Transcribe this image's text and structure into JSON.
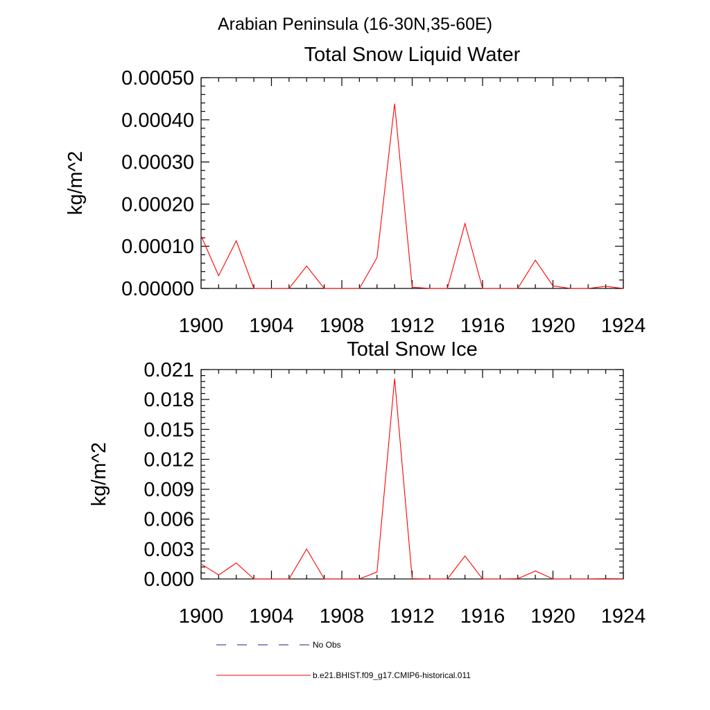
{
  "figure_title": "Arabian Peninsula (16-30N,35-60E)",
  "legend": [
    {
      "label": "No Obs",
      "color": "#1c1c8c",
      "style": "dashed"
    },
    {
      "label": "b.e21.BHIST.f09_g17.CMIP6-historical.011",
      "color": "#ff0000",
      "style": "solid"
    }
  ],
  "chart_data": [
    {
      "type": "line",
      "title": "Total Snow Liquid Water",
      "ylabel": "kg/m^2",
      "xlabel": "",
      "xlim": [
        1900,
        1924
      ],
      "ylim": [
        0,
        0.0005
      ],
      "x_ticks": [
        "1900",
        "1904",
        "1908",
        "1912",
        "1916",
        "1920",
        "1924"
      ],
      "y_ticks": [
        "0.00000",
        "0.00010",
        "0.00020",
        "0.00030",
        "0.00040",
        "0.00050"
      ],
      "grid": false,
      "series": [
        {
          "name": "b.e21.BHIST.f09_g17.CMIP6-historical.011",
          "color": "#ff0000",
          "x": [
            1900,
            1901,
            1902,
            1903,
            1904,
            1905,
            1906,
            1907,
            1908,
            1909,
            1910,
            1911,
            1912,
            1913,
            1914,
            1915,
            1916,
            1917,
            1918,
            1919,
            1920,
            1921,
            1922,
            1923,
            1924
          ],
          "y": [
            0.000125,
            3e-05,
            0.000113,
            0,
            0,
            0,
            5.3e-05,
            0,
            0,
            0,
            7.3e-05,
            0.000438,
            3e-06,
            0,
            0,
            0.000154,
            0,
            0,
            0,
            6.7e-05,
            6e-06,
            0,
            0,
            5e-06,
            0
          ]
        }
      ]
    },
    {
      "type": "line",
      "title": "Total Snow Ice",
      "ylabel": "kg/m^2",
      "xlabel": "",
      "xlim": [
        1900,
        1924
      ],
      "ylim": [
        0,
        0.021
      ],
      "x_ticks": [
        "1900",
        "1904",
        "1908",
        "1912",
        "1916",
        "1920",
        "1924"
      ],
      "y_ticks": [
        "0.000",
        "0.003",
        "0.006",
        "0.009",
        "0.012",
        "0.015",
        "0.018",
        "0.021"
      ],
      "grid": false,
      "series": [
        {
          "name": "b.e21.BHIST.f09_g17.CMIP6-historical.011",
          "color": "#ff0000",
          "x": [
            1900,
            1901,
            1902,
            1903,
            1904,
            1905,
            1906,
            1907,
            1908,
            1909,
            1910,
            1911,
            1912,
            1913,
            1914,
            1915,
            1916,
            1917,
            1918,
            1919,
            1920,
            1921,
            1922,
            1923,
            1924
          ],
          "y": [
            0.0015,
            0.0004,
            0.0016,
            0,
            0,
            0,
            0.003,
            0,
            0,
            0,
            0.0007,
            0.0201,
            3e-05,
            0,
            0,
            0.0023,
            0,
            0,
            3e-05,
            0.0008,
            0,
            0,
            0,
            3e-05,
            0
          ]
        }
      ]
    }
  ]
}
